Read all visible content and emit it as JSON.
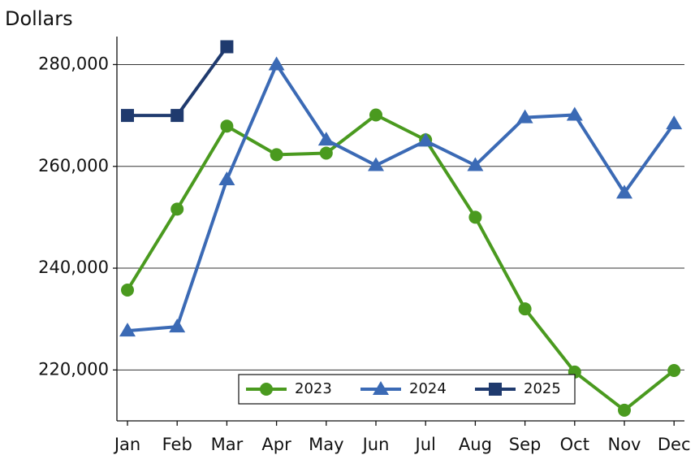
{
  "chart_data": {
    "type": "line",
    "title": "Dollars",
    "categories": [
      "Jan",
      "Feb",
      "Mar",
      "Apr",
      "May",
      "Jun",
      "Jul",
      "Aug",
      "Sep",
      "Oct",
      "Nov",
      "Dec"
    ],
    "series": [
      {
        "name": "2023",
        "color": "#4a9a1f",
        "marker": "circle",
        "values": [
          235700,
          251600,
          267900,
          262300,
          262600,
          270100,
          265200,
          250000,
          232000,
          219600,
          212100,
          219900
        ]
      },
      {
        "name": "2024",
        "color": "#3b6ab5",
        "marker": "triangle",
        "values": [
          227700,
          228500,
          257400,
          280000,
          265200,
          260200,
          265000,
          260200,
          269600,
          270100,
          254800,
          268400
        ]
      },
      {
        "name": "2025",
        "color": "#1f3a6e",
        "marker": "square",
        "values": [
          270000,
          270000,
          283500,
          null,
          null,
          null,
          null,
          null,
          null,
          null,
          null,
          null
        ]
      }
    ],
    "ylim": [
      210000,
      285500
    ],
    "yticks": [
      {
        "value": 220000,
        "label": "220,000"
      },
      {
        "value": 240000,
        "label": "240,000"
      },
      {
        "value": 260000,
        "label": "260,000"
      },
      {
        "value": 280000,
        "label": "280,000"
      }
    ],
    "grid": true,
    "legend": "bottom"
  }
}
